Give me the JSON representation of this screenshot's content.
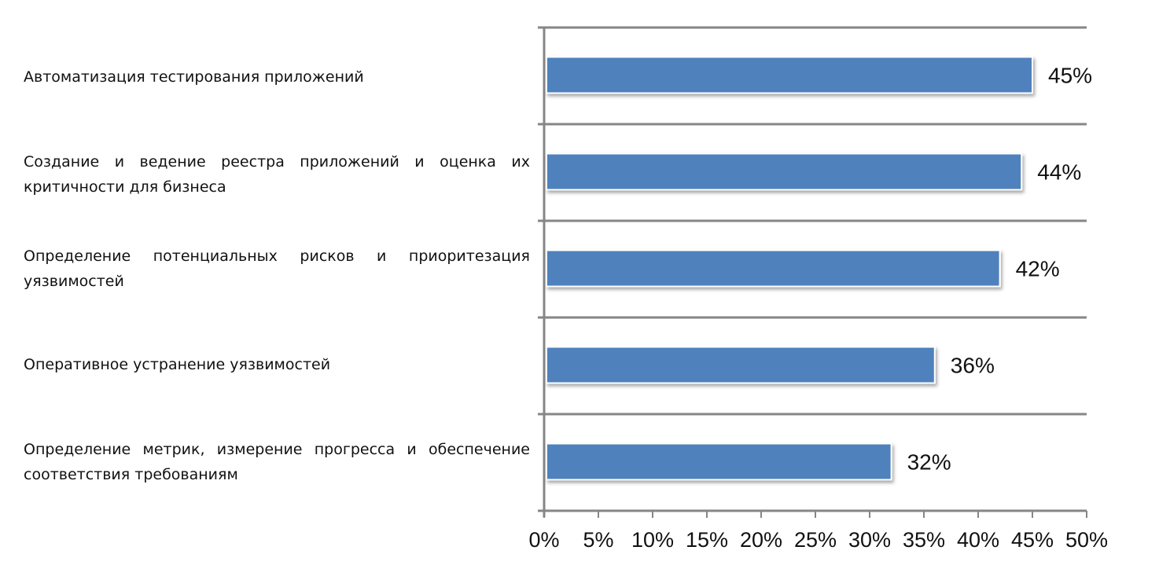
{
  "chart_data": {
    "type": "bar",
    "orientation": "horizontal",
    "categories": [
      "Автоматизация тестирования приложений",
      "Создание и ведение реестра приложений и оценка их критичности для бизнеса",
      "Определение потенциальных рисков и приоритезация уязвимостей",
      "Оперативное устранение уязвимостей",
      "Определение метрик, измерение прогресса и обеспечение соответствия требованиям"
    ],
    "values": [
      45,
      44,
      42,
      36,
      32
    ],
    "data_labels": [
      "45%",
      "44%",
      "42%",
      "36%",
      "32%"
    ],
    "xlim": [
      0,
      50
    ],
    "x_ticks": [
      0,
      5,
      10,
      15,
      20,
      25,
      30,
      35,
      40,
      45,
      50
    ],
    "x_tick_labels": [
      "0%",
      "5%",
      "10%",
      "15%",
      "20%",
      "25%",
      "30%",
      "35%",
      "40%",
      "45%",
      "50%"
    ],
    "title": "",
    "xlabel": "",
    "ylabel": "",
    "grid": "horizontal separators between categories",
    "legend": "none",
    "colors": {
      "bar": "#4f81bd",
      "axis": "#868686",
      "text": "#111111"
    }
  }
}
